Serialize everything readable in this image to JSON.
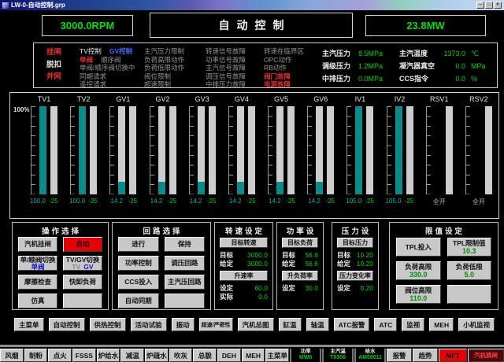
{
  "window": {
    "title": "LW-0-自动控制.grp",
    "controls": [
      {
        "name": "minimize",
        "glyph": "─"
      },
      {
        "name": "maximize",
        "glyph": "□"
      },
      {
        "name": "close",
        "glyph": "✕"
      }
    ]
  },
  "top": {
    "rpm": "3000.0RPM",
    "mode": "自动控制",
    "mw": "23.8MW"
  },
  "status": {
    "breaker": [
      {
        "text": "挂闸",
        "color": "red"
      },
      {
        "text": "脱扣",
        "color": "white"
      },
      {
        "text": "并网",
        "color": "red"
      }
    ],
    "control_modes": [
      [
        {
          "text": "TV控制",
          "color": "white"
        },
        {
          "text": "GV控制",
          "color": "blue"
        }
      ],
      [
        {
          "text": "单阀",
          "color": "red"
        },
        {
          "text": "顺序阀",
          "color": "gray"
        }
      ],
      [
        {
          "text": "单阀/顺序阀切换中",
          "color": "gray"
        }
      ],
      [
        {
          "text": "同期请求",
          "color": "gray"
        }
      ],
      [
        {
          "text": "遥控请求",
          "color": "gray"
        }
      ]
    ],
    "limits": [
      "主汽压力限制",
      "负荷高限动作",
      "负荷低限动作",
      "阀位限制",
      "超速限制"
    ],
    "signal_faults": [
      "转速信号故障",
      "功率信号故障",
      "主汽信号故障",
      "调压信号故障",
      "中排压力故障"
    ],
    "alerts": [
      {
        "text": "转速在临界区",
        "color": "gray"
      },
      {
        "text": "OPC动作",
        "color": "gray"
      },
      {
        "text": "RB动作",
        "color": "gray"
      },
      {
        "text": "阀门故障",
        "color": "red"
      },
      {
        "text": "电源故障",
        "color": "red"
      }
    ],
    "pressures": [
      {
        "label": "主汽压力",
        "value": "8.5MPa"
      },
      {
        "label": "调级压力",
        "value": "1.2MPa"
      },
      {
        "label": "中排压力",
        "value": "0.0MPa"
      }
    ],
    "misc": [
      {
        "label": "主汽温度",
        "value": "1373.0",
        "unit": "℃"
      },
      {
        "label": "凝汽器真空",
        "value": "0.0",
        "unit": "MPa"
      },
      {
        "label": "CCS指令",
        "value": "0.0",
        "unit": "%"
      }
    ]
  },
  "bars": {
    "scale_label": "100%",
    "groups": [
      {
        "label": "TV1",
        "fill": 100,
        "readings": [
          {
            "text": "100.0",
            "color": "teal"
          },
          {
            "text": "-25",
            "color": "green"
          }
        ]
      },
      {
        "label": "TV2",
        "fill": 100,
        "readings": [
          {
            "text": "100.0",
            "color": "teal"
          },
          {
            "text": "-25",
            "color": "green"
          }
        ]
      },
      {
        "label": "GV1",
        "fill": 14.2,
        "readings": [
          {
            "text": "14.2",
            "color": "teal"
          },
          {
            "text": "-25",
            "color": "green"
          }
        ]
      },
      {
        "label": "GV2",
        "fill": 14.2,
        "readings": [
          {
            "text": "14.2",
            "color": "teal"
          },
          {
            "text": "-25",
            "color": "green"
          }
        ]
      },
      {
        "label": "GV3",
        "fill": 14.2,
        "readings": [
          {
            "text": "14.2",
            "color": "teal"
          },
          {
            "text": "-25",
            "color": "green"
          }
        ]
      },
      {
        "label": "GV4",
        "fill": 14.2,
        "readings": [
          {
            "text": "14.2",
            "color": "teal"
          },
          {
            "text": "-25",
            "color": "green"
          }
        ]
      },
      {
        "label": "GV5",
        "fill": 14.2,
        "readings": [
          {
            "text": "14.2",
            "color": "teal"
          },
          {
            "text": "-25",
            "color": "green"
          }
        ]
      },
      {
        "label": "GV6",
        "fill": 14.2,
        "readings": [
          {
            "text": "14.2",
            "color": "teal"
          },
          {
            "text": "-25",
            "color": "green"
          }
        ]
      },
      {
        "label": "IV1",
        "fill": 100,
        "readings": [
          {
            "text": "105.0",
            "color": "teal"
          },
          {
            "text": "-25",
            "color": "green"
          }
        ]
      },
      {
        "label": "IV2",
        "fill": 100,
        "readings": [
          {
            "text": "105.0",
            "color": "teal"
          },
          {
            "text": "-25",
            "color": "green"
          }
        ]
      },
      {
        "label": "RSV1",
        "single": true,
        "readings": [
          {
            "text": "全开",
            "color": "gray"
          }
        ]
      },
      {
        "label": "RSV2",
        "single": true,
        "readings": [
          {
            "text": "全开",
            "color": "gray"
          }
        ]
      }
    ]
  },
  "panels": {
    "operation": {
      "title": "操作选择",
      "buttons": [
        {
          "label": "汽机挂闸"
        },
        {
          "label": "自动",
          "variant": "red"
        },
        {
          "label": "单/顺阀切换",
          "sub": [
            {
              "text": "单阀",
              "color": "blue"
            }
          ]
        },
        {
          "label": "TV/GV切换",
          "sub": [
            {
              "text": "TV",
              "color": "gray"
            },
            {
              "text": "GV",
              "color": "blue"
            }
          ]
        },
        {
          "label": "摩擦检查"
        },
        {
          "label": "快卸负荷"
        },
        {
          "label": "仿真"
        },
        {
          "label": ""
        }
      ]
    },
    "loop": {
      "title": "回路选择",
      "buttons": [
        "进行",
        "保持",
        "功率控制",
        "调压回路",
        "CCS投入",
        "主汽压回路",
        "自动同期",
        ""
      ]
    },
    "setters": [
      {
        "title": "转速设定",
        "button1": "目标转速",
        "rows1": [
          {
            "label": "目标",
            "value": "3000.0"
          },
          {
            "label": "给定",
            "value": "3000.0"
          }
        ],
        "button2": "升速率",
        "rows2": [
          {
            "label": "设定",
            "value": "60.0"
          },
          {
            "label": "实际",
            "value": "0.0"
          }
        ]
      },
      {
        "title": "功率设定",
        "button1": "目标负荷",
        "rows1": [
          {
            "label": "目标",
            "value": "56.6"
          },
          {
            "label": "给定",
            "value": "56.6"
          }
        ],
        "button2": "升负荷率",
        "rows2": [
          {
            "label": "设定",
            "value": "30.0"
          }
        ]
      },
      {
        "title": "压力设定",
        "button1": "目标压力",
        "rows1": [
          {
            "label": "目标",
            "value": "10.20"
          },
          {
            "label": "给定",
            "value": "10.20"
          }
        ],
        "button2": "压力变化率",
        "rows2": [
          {
            "label": "设定",
            "value": "0.20"
          }
        ]
      }
    ],
    "limit": {
      "title": "限值设定",
      "buttons": [
        {
          "label": "TPL投入"
        },
        {
          "label": "TPL限制值",
          "value": "10.3"
        },
        {
          "label": "负荷高限",
          "value": "330.0"
        },
        {
          "label": "负荷低限",
          "value": "5.0"
        },
        {
          "label": "阀位高限",
          "value": "110.0"
        },
        {
          "label": ""
        }
      ]
    }
  },
  "nav": [
    "主菜单",
    "自动控制",
    "供热控制",
    "活动试验",
    "振动",
    "超速/严密性",
    "汽机总图",
    "缸温",
    "轴温",
    "ATC报警",
    "ATC",
    "监视",
    "MEH",
    "小机监视"
  ],
  "taskbar": {
    "system_buttons": [
      "风烟",
      "制粉",
      "点火",
      "FSSS",
      "炉给水",
      "减温",
      "炉疏水",
      "吹灰",
      "总貌",
      "DEH",
      "MEH",
      "主菜单"
    ],
    "status_cells": [
      {
        "label": "功率",
        "value": "MW6"
      },
      {
        "label": "主汽温",
        "value": "T0306"
      },
      {
        "label": "给水",
        "value": "AM00011"
      }
    ],
    "view_buttons": [
      "报警",
      "趋势"
    ],
    "alarm_buttons": [
      {
        "label": "MFT",
        "variant": "red"
      },
      {
        "label": "汽机跳闸",
        "variant": "darkred"
      }
    ]
  },
  "colors": {
    "bar_teal": "#0c8b8b",
    "bar_gray": "#cdcdcd",
    "value_green": "#00d000",
    "alarm_red": "#e03030",
    "mode_blue": "#4f6bff",
    "inactive_gray": "#969696"
  }
}
